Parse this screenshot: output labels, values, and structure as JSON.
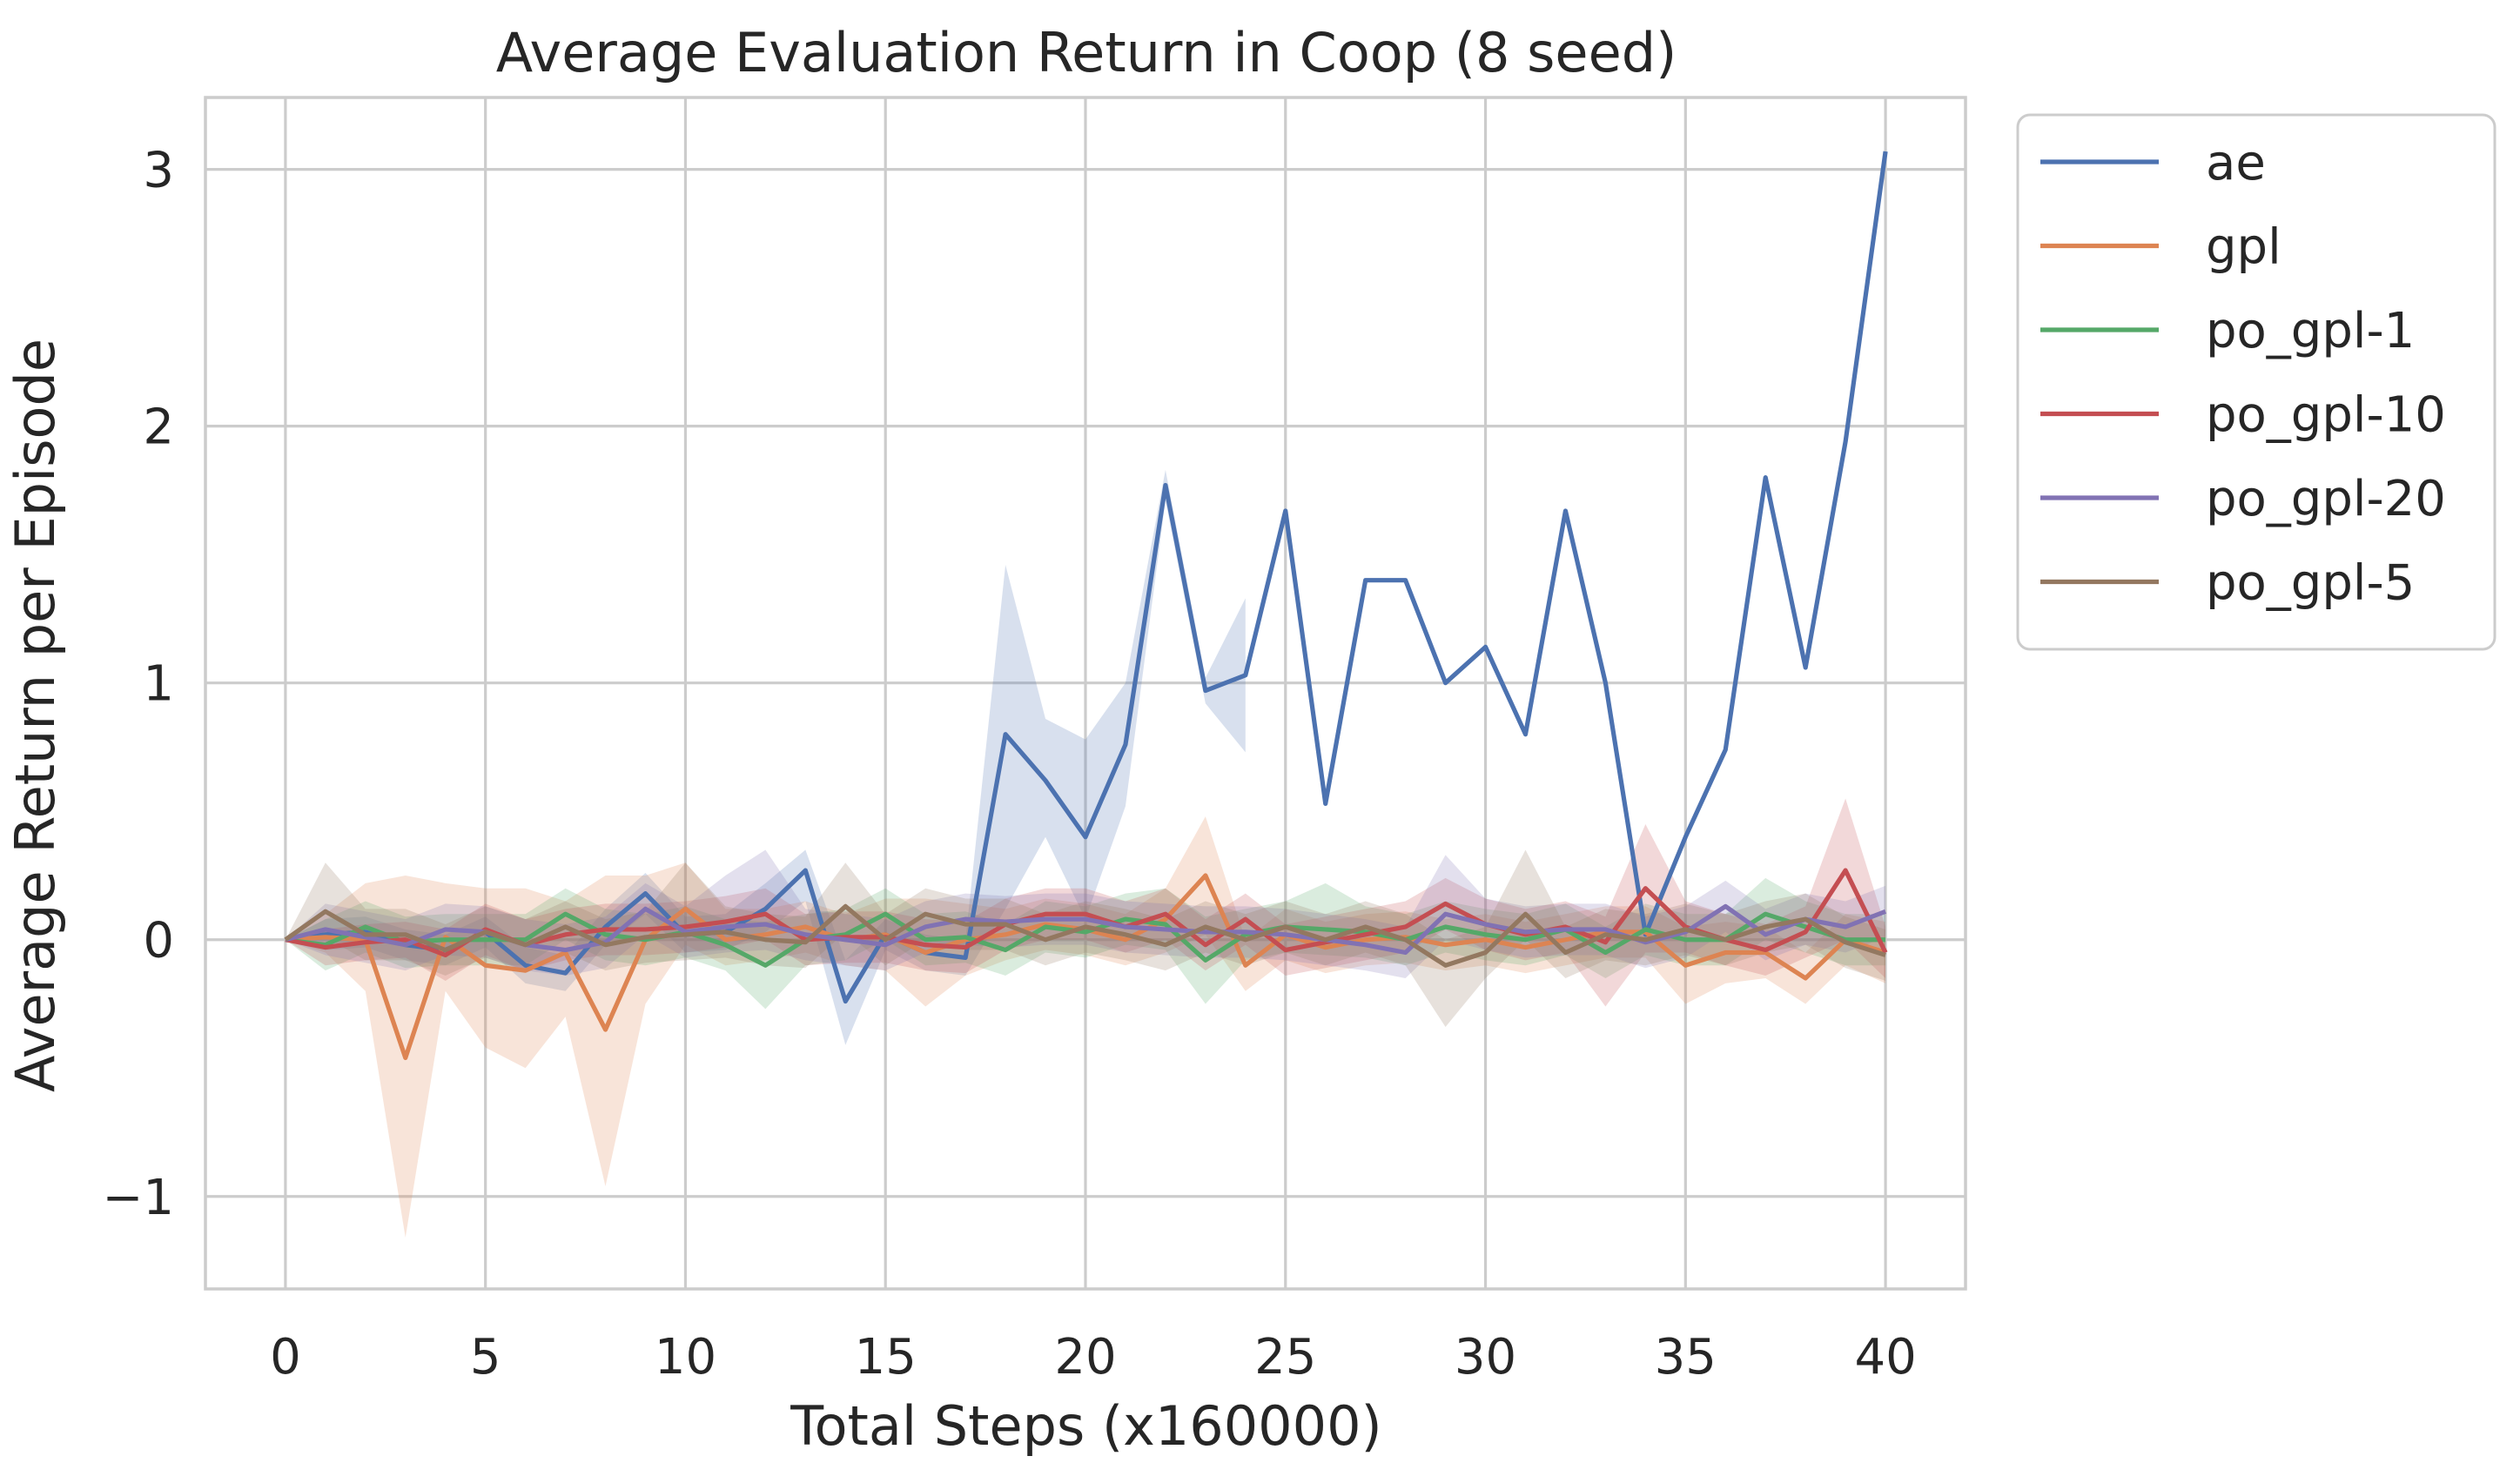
{
  "chart_data": {
    "type": "line",
    "title": "Average Evaluation Return in Coop (8 seed)",
    "xlabel": "Total Steps (x160000)",
    "ylabel": "Average Return per Episode",
    "xlim": [
      -2,
      42
    ],
    "ylim": [
      -1.36,
      3.28
    ],
    "xticks": [
      0,
      5,
      10,
      15,
      20,
      25,
      30,
      35,
      40
    ],
    "yticks": [
      -1,
      0,
      1,
      2,
      3
    ],
    "ytick_labels": [
      "−1",
      "0",
      "1",
      "2",
      "3"
    ],
    "grid": true,
    "legend_position": "outside-top-right",
    "x": [
      0,
      1,
      2,
      3,
      4,
      5,
      6,
      7,
      8,
      9,
      10,
      11,
      12,
      13,
      14,
      15,
      16,
      17,
      18,
      19,
      20,
      21,
      22,
      23,
      24,
      25,
      26,
      27,
      28,
      29,
      30,
      31,
      32,
      33,
      34,
      35,
      36,
      37,
      38,
      39,
      40
    ],
    "series": [
      {
        "name": "ae",
        "color": "#4c72b0",
        "values": [
          0,
          0.02,
          0.03,
          -0.02,
          -0.04,
          0.03,
          -0.1,
          -0.13,
          0.05,
          0.18,
          0.02,
          0.03,
          0.12,
          0.27,
          -0.24,
          0.02,
          -0.05,
          -0.07,
          0.8,
          0.62,
          0.4,
          0.76,
          1.77,
          0.97,
          1.03,
          1.67,
          0.53,
          1.4,
          1.4,
          1.0,
          1.14,
          0.8,
          1.67,
          1.0,
          0.02,
          0.4,
          0.74,
          1.8,
          1.06,
          1.94,
          3.07
        ],
        "lower": [
          0,
          -0.04,
          -0.03,
          -0.08,
          -0.1,
          -0.03,
          -0.17,
          -0.2,
          -0.02,
          0.1,
          -0.05,
          -0.04,
          0.03,
          0.15,
          -0.41,
          -0.04,
          -0.12,
          -0.14,
          0.12,
          0.4,
          0.08,
          0.52,
          1.71,
          0.92,
          0.73,
          null,
          null,
          null,
          null,
          null,
          null,
          null,
          null,
          null,
          null,
          null,
          null,
          null,
          null,
          null,
          null
        ],
        "upper": [
          0,
          0.08,
          0.09,
          0.04,
          0.02,
          0.09,
          -0.03,
          -0.06,
          0.12,
          0.26,
          0.09,
          0.1,
          0.22,
          0.35,
          -0.08,
          0.08,
          0.02,
          0.0,
          1.46,
          0.86,
          0.78,
          1.0,
          1.83,
          1.02,
          1.33,
          null,
          null,
          null,
          null,
          null,
          null,
          null,
          null,
          null,
          null,
          null,
          null,
          null,
          null,
          null,
          null
        ]
      },
      {
        "name": "gpl",
        "color": "#dd8452",
        "values": [
          0,
          0.01,
          0.0,
          -0.46,
          0.01,
          -0.1,
          -0.12,
          -0.05,
          -0.35,
          0.0,
          0.12,
          0.0,
          0.02,
          0.05,
          0.0,
          0.02,
          -0.05,
          0.0,
          0.02,
          0.06,
          0.04,
          0.0,
          0.08,
          0.25,
          -0.1,
          0.02,
          -0.03,
          0.0,
          0.01,
          -0.02,
          0.0,
          -0.03,
          0.0,
          0.03,
          0.03,
          -0.1,
          -0.05,
          -0.05,
          -0.15,
          0.0,
          -0.05
        ],
        "lower": [
          0,
          -0.05,
          -0.2,
          -1.16,
          -0.2,
          -0.42,
          -0.5,
          -0.3,
          -0.96,
          -0.25,
          -0.02,
          -0.1,
          -0.08,
          -0.05,
          -0.1,
          -0.12,
          -0.26,
          -0.14,
          -0.08,
          -0.04,
          -0.06,
          -0.1,
          -0.05,
          0.02,
          -0.2,
          -0.08,
          -0.13,
          -0.1,
          -0.09,
          -0.12,
          -0.1,
          -0.13,
          -0.1,
          -0.07,
          -0.07,
          -0.25,
          -0.17,
          -0.15,
          -0.25,
          -0.1,
          -0.17
        ],
        "upper": [
          0,
          0.1,
          0.22,
          0.25,
          0.22,
          0.2,
          0.2,
          0.15,
          0.25,
          0.25,
          0.3,
          0.12,
          0.12,
          0.15,
          0.1,
          0.16,
          0.16,
          0.14,
          0.12,
          0.16,
          0.14,
          0.1,
          0.2,
          0.48,
          0.0,
          0.12,
          0.07,
          0.1,
          0.11,
          0.08,
          0.1,
          0.07,
          0.1,
          0.13,
          0.13,
          0.05,
          0.07,
          0.05,
          -0.05,
          0.1,
          0.07
        ]
      },
      {
        "name": "po_gpl-1",
        "color": "#55a868",
        "values": [
          0,
          -0.02,
          0.05,
          -0.01,
          0.0,
          0.0,
          0.0,
          0.1,
          0.02,
          0.0,
          0.03,
          -0.02,
          -0.1,
          0.0,
          0.02,
          0.1,
          0.0,
          0.01,
          -0.04,
          0.05,
          0.03,
          0.08,
          0.06,
          -0.08,
          0.02,
          0.05,
          0.04,
          0.03,
          0.0,
          0.05,
          0.02,
          0.0,
          0.04,
          -0.05,
          0.04,
          0.0,
          0.0,
          0.1,
          0.05,
          0.0,
          0.0
        ],
        "lower": [
          0,
          -0.12,
          -0.05,
          -0.11,
          -0.1,
          -0.1,
          -0.1,
          0.0,
          -0.08,
          -0.1,
          -0.07,
          -0.12,
          -0.27,
          -0.1,
          -0.08,
          0.0,
          -0.1,
          -0.09,
          -0.14,
          -0.05,
          -0.07,
          -0.02,
          -0.04,
          -0.25,
          -0.08,
          -0.05,
          -0.06,
          -0.07,
          -0.1,
          -0.05,
          -0.08,
          -0.1,
          -0.06,
          -0.15,
          -0.06,
          -0.1,
          -0.1,
          0.0,
          -0.05,
          -0.1,
          -0.1
        ],
        "upper": [
          0,
          0.08,
          0.15,
          0.09,
          0.1,
          0.1,
          0.1,
          0.2,
          0.12,
          0.1,
          0.13,
          0.08,
          0.07,
          0.1,
          0.12,
          0.2,
          0.1,
          0.11,
          0.06,
          0.15,
          0.13,
          0.18,
          0.2,
          0.09,
          0.12,
          0.15,
          0.22,
          0.13,
          0.1,
          0.15,
          0.12,
          0.1,
          0.14,
          0.05,
          0.14,
          0.1,
          0.1,
          0.24,
          0.15,
          0.1,
          0.1
        ]
      },
      {
        "name": "po_gpl-10",
        "color": "#c44e52",
        "values": [
          0,
          -0.03,
          -0.01,
          0.0,
          -0.06,
          0.04,
          -0.02,
          0.02,
          0.04,
          0.04,
          0.05,
          0.07,
          0.1,
          0.0,
          0.01,
          0.01,
          -0.02,
          -0.03,
          0.06,
          0.1,
          0.1,
          0.05,
          0.1,
          -0.02,
          0.08,
          -0.04,
          -0.01,
          0.02,
          0.05,
          0.14,
          0.06,
          0.02,
          0.05,
          -0.01,
          0.2,
          0.05,
          0.0,
          -0.04,
          0.03,
          0.27,
          -0.05
        ],
        "lower": [
          0,
          -0.1,
          -0.08,
          -0.07,
          -0.16,
          -0.06,
          -0.12,
          -0.08,
          -0.06,
          -0.06,
          -0.05,
          -0.03,
          0.0,
          -0.1,
          -0.09,
          -0.09,
          -0.12,
          -0.13,
          -0.04,
          0.0,
          0.0,
          -0.05,
          0.0,
          -0.12,
          -0.02,
          -0.14,
          -0.11,
          -0.08,
          -0.05,
          0.04,
          -0.04,
          -0.08,
          -0.05,
          -0.26,
          -0.05,
          -0.05,
          -0.1,
          -0.14,
          -0.07,
          0.0,
          -0.15
        ],
        "upper": [
          0,
          0.04,
          0.06,
          0.07,
          0.04,
          0.14,
          0.08,
          0.12,
          0.14,
          0.14,
          0.15,
          0.17,
          0.2,
          0.1,
          0.11,
          0.11,
          0.08,
          0.07,
          0.16,
          0.2,
          0.2,
          0.15,
          0.2,
          0.08,
          0.18,
          0.06,
          0.09,
          0.12,
          0.15,
          0.24,
          0.16,
          0.12,
          0.15,
          0.09,
          0.45,
          0.15,
          0.1,
          0.06,
          0.13,
          0.55,
          0.05
        ]
      },
      {
        "name": "po_gpl-20",
        "color": "#8172b3",
        "values": [
          0,
          0.04,
          0.01,
          -0.02,
          0.04,
          0.03,
          -0.02,
          -0.04,
          -0.01,
          0.12,
          0.03,
          0.05,
          0.06,
          0.02,
          0.0,
          -0.02,
          0.05,
          0.08,
          0.07,
          0.08,
          0.08,
          0.05,
          0.04,
          0.03,
          0.03,
          0.02,
          0.0,
          -0.02,
          -0.05,
          0.1,
          0.06,
          0.03,
          0.04,
          0.04,
          -0.01,
          0.03,
          0.13,
          0.02,
          0.08,
          0.05,
          0.11
        ],
        "lower": [
          0,
          -0.06,
          -0.09,
          -0.12,
          -0.06,
          -0.07,
          -0.12,
          -0.14,
          -0.11,
          0.02,
          -0.07,
          -0.05,
          -0.04,
          -0.08,
          -0.1,
          -0.12,
          -0.05,
          -0.02,
          -0.03,
          -0.02,
          -0.02,
          -0.05,
          -0.06,
          -0.07,
          -0.07,
          -0.08,
          -0.1,
          -0.12,
          -0.15,
          0.0,
          -0.04,
          -0.07,
          -0.06,
          -0.06,
          -0.11,
          -0.07,
          0.03,
          -0.08,
          -0.02,
          -0.05,
          0.01
        ],
        "upper": [
          0,
          0.14,
          0.11,
          0.08,
          0.14,
          0.13,
          0.08,
          0.06,
          0.09,
          0.22,
          0.13,
          0.25,
          0.35,
          0.12,
          0.1,
          0.08,
          0.15,
          0.18,
          0.17,
          0.18,
          0.18,
          0.15,
          0.14,
          0.13,
          0.13,
          0.12,
          0.1,
          0.08,
          0.05,
          0.33,
          0.16,
          0.13,
          0.14,
          0.14,
          0.09,
          0.13,
          0.23,
          0.12,
          0.18,
          0.15,
          0.21
        ]
      },
      {
        "name": "po_gpl-5",
        "color": "#937860",
        "values": [
          0,
          0.11,
          0.02,
          0.02,
          -0.04,
          0.03,
          -0.02,
          0.05,
          -0.02,
          0.01,
          0.02,
          0.03,
          0.0,
          -0.01,
          0.13,
          0.0,
          0.1,
          0.06,
          0.06,
          0.0,
          0.05,
          0.02,
          -0.02,
          0.05,
          0.0,
          0.05,
          0.0,
          0.05,
          0.0,
          -0.1,
          -0.05,
          0.1,
          -0.05,
          0.02,
          0.0,
          0.04,
          0.0,
          0.05,
          0.08,
          -0.01,
          -0.06
        ],
        "lower": [
          0,
          0.01,
          -0.08,
          -0.08,
          -0.14,
          -0.07,
          -0.12,
          -0.05,
          -0.12,
          -0.09,
          -0.08,
          -0.07,
          -0.1,
          -0.11,
          0.03,
          -0.1,
          0.0,
          -0.04,
          -0.04,
          -0.1,
          -0.05,
          -0.08,
          -0.12,
          -0.05,
          -0.1,
          -0.05,
          -0.1,
          -0.05,
          -0.1,
          -0.34,
          -0.15,
          0.0,
          -0.15,
          -0.08,
          -0.1,
          -0.06,
          -0.1,
          -0.05,
          -0.02,
          -0.11,
          -0.16
        ],
        "upper": [
          0,
          0.3,
          0.12,
          0.12,
          0.06,
          0.13,
          0.08,
          0.15,
          0.08,
          0.11,
          0.3,
          0.13,
          0.1,
          0.09,
          0.3,
          0.1,
          0.2,
          0.16,
          0.16,
          0.1,
          0.15,
          0.12,
          0.08,
          0.15,
          0.1,
          0.15,
          0.1,
          0.15,
          0.1,
          0.0,
          0.05,
          0.35,
          0.05,
          0.12,
          0.1,
          0.14,
          0.1,
          0.15,
          0.18,
          0.09,
          0.04
        ]
      }
    ]
  }
}
